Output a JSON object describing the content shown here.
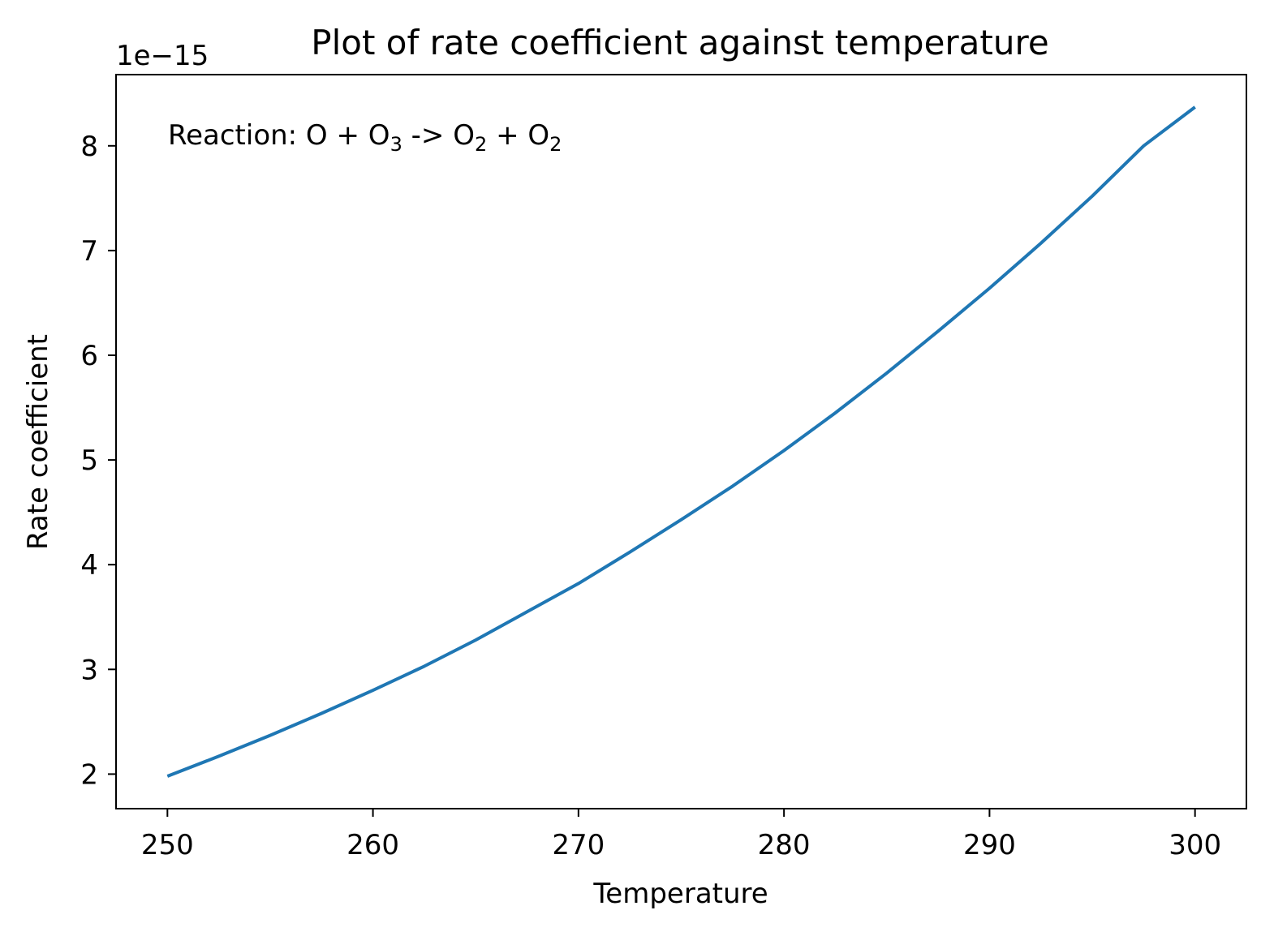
{
  "chart_data": {
    "type": "line",
    "title": "Plot of rate coefficient against temperature",
    "xlabel": "Temperature",
    "ylabel": "Rate coefficient",
    "y_offset_text": "1e−15",
    "annotation": {
      "prefix": "Reaction: O + O",
      "sub1": "3",
      "mid1": " -> O",
      "sub2": "2",
      "mid2": " + O",
      "sub3": "2"
    },
    "xlim": [
      247.5,
      302.5
    ],
    "ylim": [
      1.67,
      8.68
    ],
    "x_scale_note": "linear",
    "y_units_multiplier": 1e-15,
    "xticks": [
      250,
      260,
      270,
      280,
      290,
      300
    ],
    "xtick_labels": [
      "250",
      "260",
      "270",
      "280",
      "290",
      "300"
    ],
    "yticks": [
      2,
      3,
      4,
      5,
      6,
      7,
      8
    ],
    "ytick_labels": [
      "2",
      "3",
      "4",
      "5",
      "6",
      "7",
      "8"
    ],
    "grid": false,
    "legend": "none",
    "series": [
      {
        "color": "#1f77b4",
        "x": [
          250,
          252.5,
          255,
          257.5,
          260,
          262.5,
          265,
          267.5,
          270,
          272.5,
          275,
          277.5,
          280,
          282.5,
          285,
          287.5,
          290,
          292.5,
          295,
          297.5,
          300
        ],
        "y": [
          1.98,
          2.17,
          2.37,
          2.58,
          2.8,
          3.03,
          3.28,
          3.55,
          3.82,
          4.12,
          4.43,
          4.75,
          5.09,
          5.45,
          5.83,
          6.23,
          6.64,
          7.07,
          7.52,
          8.0,
          8.37
        ]
      }
    ]
  }
}
